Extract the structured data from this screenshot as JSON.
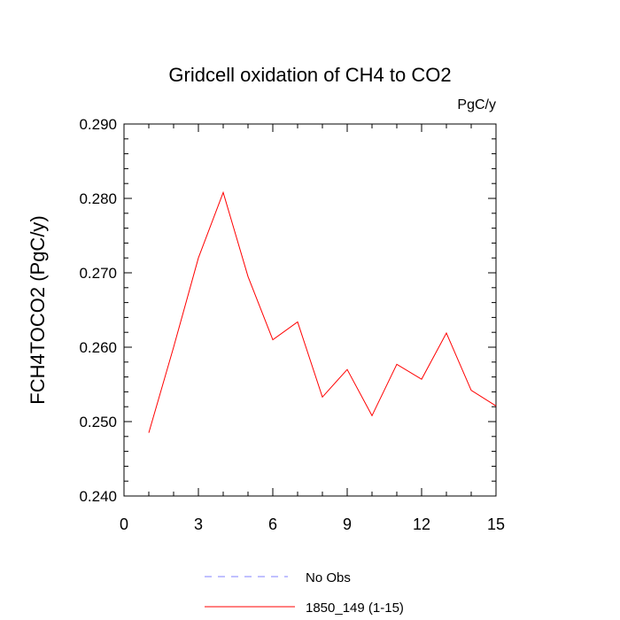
{
  "chart_data": {
    "type": "line",
    "title": "Gridcell oxidation of CH4 to CO2",
    "units": "PgC/y",
    "ylabel": "FCH4TOCO2  (PgC/y)",
    "xlabel": "",
    "xlim": [
      0,
      15
    ],
    "ylim": [
      0.24,
      0.29
    ],
    "xticks": [
      0,
      3,
      6,
      9,
      12,
      15
    ],
    "xtick_labels": [
      "0",
      "3",
      "6",
      "9",
      "12",
      "15"
    ],
    "yticks": [
      0.24,
      0.25,
      0.26,
      0.27,
      0.28,
      0.29
    ],
    "ytick_labels": [
      "0.240",
      "0.250",
      "0.260",
      "0.270",
      "0.280",
      "0.290"
    ],
    "series": [
      {
        "name": "1850_149 (1-15)",
        "color": "#ff0000",
        "style": "solid",
        "x": [
          1,
          2,
          3,
          4,
          5,
          6,
          7,
          8,
          9,
          10,
          11,
          12,
          13,
          14,
          15
        ],
        "values": [
          0.2485,
          0.26,
          0.272,
          0.2808,
          0.2695,
          0.261,
          0.2634,
          0.2533,
          0.257,
          0.2508,
          0.2577,
          0.2557,
          0.2619,
          0.2542,
          0.2521
        ]
      }
    ],
    "legend": [
      {
        "label": "No Obs",
        "color": "#8080ff",
        "style": "dashed"
      },
      {
        "label": "1850_149 (1-15)",
        "color": "#ff0000",
        "style": "solid"
      }
    ],
    "legend_position": "bottom"
  }
}
